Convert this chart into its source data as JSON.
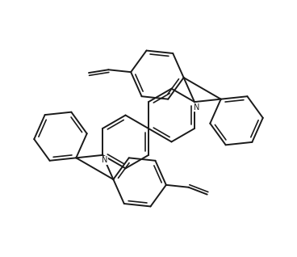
{
  "bg_color": "#ffffff",
  "line_color": "#1a1a1a",
  "line_width": 1.4,
  "fig_width": 3.68,
  "fig_height": 3.18,
  "dpi": 100,
  "N_fontsize": 7
}
